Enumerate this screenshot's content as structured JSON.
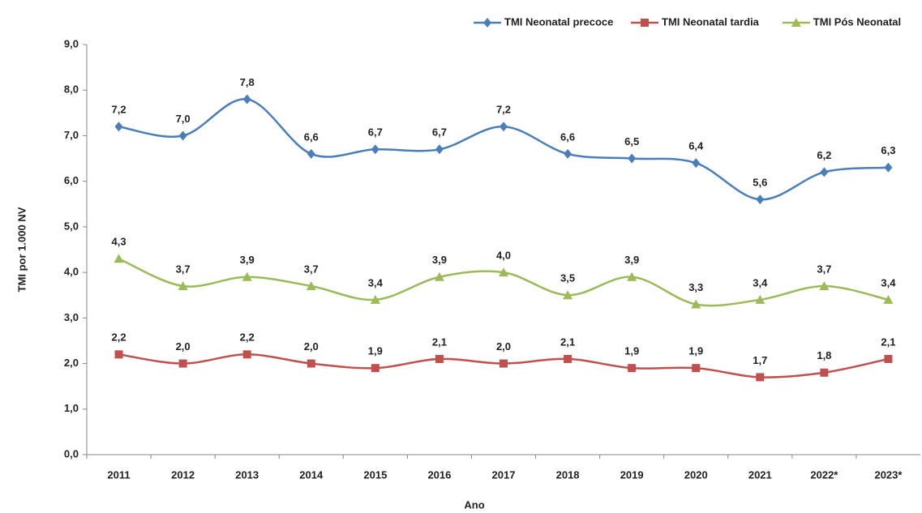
{
  "chart_data": {
    "type": "line",
    "xlabel": "Ano",
    "ylabel": "TMI por 1.000 NV",
    "categories": [
      "2011",
      "2012",
      "2013",
      "2014",
      "2015",
      "2016",
      "2017",
      "2018",
      "2019",
      "2020",
      "2021",
      "2022*",
      "2023*"
    ],
    "series": [
      {
        "name": "TMI Neonatal precoce",
        "color": "#4a7ebb",
        "marker": "diamond",
        "values": [
          7.2,
          7.0,
          7.8,
          6.6,
          6.7,
          6.7,
          7.2,
          6.6,
          6.5,
          6.4,
          5.6,
          6.2,
          6.3
        ],
        "value_labels": [
          "7,2",
          "7,0",
          "7,8",
          "6,6",
          "6,7",
          "6,7",
          "7,2",
          "6,6",
          "6,5",
          "6,4",
          "5,6",
          "6,2",
          "6,3"
        ]
      },
      {
        "name": "TMI Neonatal tardia",
        "color": "#c0504d",
        "marker": "square",
        "values": [
          2.2,
          2.0,
          2.2,
          2.0,
          1.9,
          2.1,
          2.0,
          2.1,
          1.9,
          1.9,
          1.7,
          1.8,
          2.1
        ],
        "value_labels": [
          "2,2",
          "2,0",
          "2,2",
          "2,0",
          "1,9",
          "2,1",
          "2,0",
          "2,1",
          "1,9",
          "1,9",
          "1,7",
          "1,8",
          "2,1"
        ]
      },
      {
        "name": "TMI Pós Neonatal",
        "color": "#9bbb59",
        "marker": "triangle",
        "values": [
          4.3,
          3.7,
          3.9,
          3.7,
          3.4,
          3.9,
          4.0,
          3.5,
          3.9,
          3.3,
          3.4,
          3.7,
          3.4
        ],
        "value_labels": [
          "4,3",
          "3,7",
          "3,9",
          "3,7",
          "3,4",
          "3,9",
          "4,0",
          "3,5",
          "3,9",
          "3,3",
          "3,4",
          "3,7",
          "3,4"
        ]
      }
    ],
    "ylim": [
      0,
      9
    ],
    "yticks": [
      {
        "value": 0,
        "label": "0,0"
      },
      {
        "value": 1,
        "label": "1,0"
      },
      {
        "value": 2,
        "label": "2,0"
      },
      {
        "value": 3,
        "label": "3,0"
      },
      {
        "value": 4,
        "label": "4,0"
      },
      {
        "value": 5,
        "label": "5,0"
      },
      {
        "value": 6,
        "label": "6,0"
      },
      {
        "value": 7,
        "label": "7,0"
      },
      {
        "value": 8,
        "label": "8,0"
      },
      {
        "value": 9,
        "label": "9,0"
      }
    ],
    "grid": false,
    "legend": "top-right"
  }
}
